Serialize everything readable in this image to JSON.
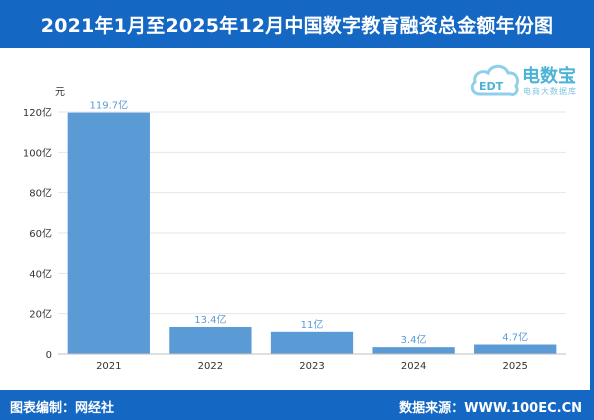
{
  "header": {
    "title": "2021年1月至2025年12月中国数字教育融资总金额年份图"
  },
  "logo": {
    "brand": "电数宝",
    "sub": "电商大数据库",
    "mark": "EDT"
  },
  "footer": {
    "left": "图表编制：网经社",
    "right": "数据来源：WWW.100EC.CN"
  },
  "chart_data": {
    "type": "bar",
    "categories": [
      "2021",
      "2022",
      "2023",
      "2024",
      "2025"
    ],
    "values": [
      119.7,
      13.4,
      11,
      3.4,
      4.7
    ],
    "value_labels": [
      "119.7亿",
      "13.4亿",
      "11亿",
      "3.4亿",
      "4.7亿"
    ],
    "y_ticks": [
      "0",
      "20亿",
      "40亿",
      "60亿",
      "80亿",
      "100亿",
      "120亿"
    ],
    "y_tick_values": [
      0,
      20,
      40,
      60,
      80,
      100,
      120
    ],
    "ylabel": "元",
    "ylim": [
      0,
      120
    ],
    "grid": true,
    "bar_color": "#5b9bd5",
    "label_color": "#5b9bd5"
  }
}
